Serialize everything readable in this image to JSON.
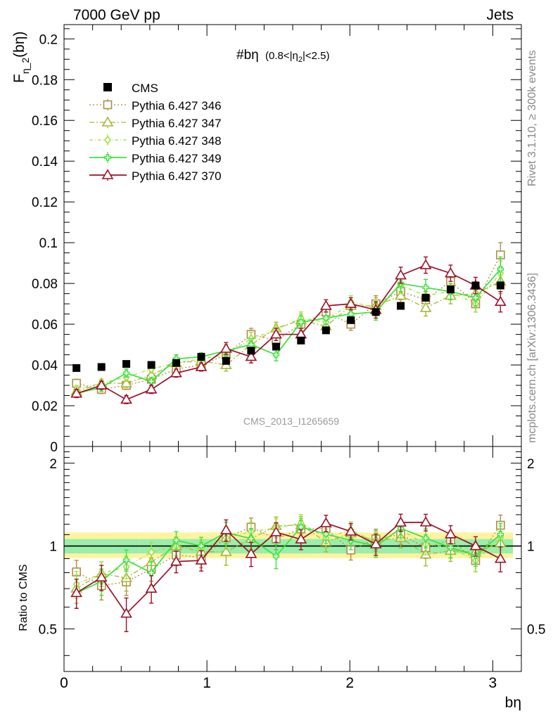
{
  "header": {
    "energy": "7000 GeV pp",
    "category": "Jets"
  },
  "side_labels": {
    "rivet": "Rivet 3.1.10, ≥ 300k events",
    "mcplots": "mcplots.cern.ch [arXiv:1306.3436]"
  },
  "watermark": "CMS_2013_I1265659",
  "colors": {
    "CMS": "#000000",
    "Pythia 6.427 346": "#b08d48",
    "Pythia 6.427 347": "#a9b536",
    "Pythia 6.427 348": "#a0e040",
    "Pythia 6.427 349": "#3ae23a",
    "Pythia 6.427 370": "#9b1028",
    "band_outer": "#fff3a0",
    "band_inner": "#99eeaa"
  },
  "chart_data": {
    "type": "scatter",
    "title_main": "#bη",
    "title_sub": "(0.8<|η",
    "title_sub_index": "2",
    "title_sub_end": "|<2.5)",
    "ylabel_main": "F",
    "ylabel_sub": "η_2",
    "ylabel_end": "(bη)",
    "xlabel": "bη",
    "ratio_ylabel": "Ratio to CMS",
    "xlim": [
      0,
      3.2
    ],
    "ylim_main": [
      0,
      0.207
    ],
    "ylim_ratio": [
      0.35,
      2.3
    ],
    "x_ticks": [
      "0",
      "1",
      "2",
      "3"
    ],
    "y_ticks_main": [
      "0",
      "0.02",
      "0.04",
      "0.06",
      "0.08",
      "0.1",
      "0.12",
      "0.14",
      "0.16",
      "0.18",
      "0.2"
    ],
    "y_ticks_ratio": [
      "0.5",
      "1",
      "2"
    ],
    "x": [
      0.087,
      0.262,
      0.436,
      0.611,
      0.785,
      0.96,
      1.134,
      1.309,
      1.484,
      1.658,
      1.833,
      2.007,
      2.182,
      2.356,
      2.531,
      2.705,
      2.88,
      3.054
    ],
    "cms": {
      "name": "CMS",
      "values": [
        0.0385,
        0.039,
        0.0405,
        0.04,
        0.041,
        0.044,
        0.042,
        0.047,
        0.049,
        0.052,
        0.057,
        0.062,
        0.066,
        0.069,
        0.073,
        0.077,
        0.079,
        0.079
      ],
      "rel_stat_err": 0.04,
      "rel_sys_err": 0.12
    },
    "series": [
      {
        "name": "Pythia 6.427 346",
        "marker": "square",
        "dash": "2,3",
        "values": [
          0.031,
          0.028,
          0.03,
          0.033,
          0.038,
          0.04,
          0.045,
          0.055,
          0.052,
          0.06,
          0.066,
          0.06,
          0.07,
          0.076,
          0.072,
          0.081,
          0.07,
          0.094
        ],
        "errors": [
          0.002,
          0.002,
          0.002,
          0.002,
          0.002,
          0.002,
          0.003,
          0.003,
          0.003,
          0.003,
          0.003,
          0.003,
          0.004,
          0.004,
          0.004,
          0.004,
          0.004,
          0.006
        ]
      },
      {
        "name": "Pythia 6.427 347",
        "marker": "triangle",
        "dash": "7,3,2,3",
        "values": [
          0.027,
          0.031,
          0.031,
          0.035,
          0.041,
          0.042,
          0.04,
          0.05,
          0.058,
          0.062,
          0.059,
          0.069,
          0.069,
          0.074,
          0.068,
          0.074,
          0.075,
          0.081
        ],
        "errors": [
          0.002,
          0.002,
          0.002,
          0.002,
          0.002,
          0.002,
          0.003,
          0.003,
          0.003,
          0.003,
          0.003,
          0.003,
          0.004,
          0.004,
          0.004,
          0.004,
          0.004,
          0.006
        ]
      },
      {
        "name": "Pythia 6.427 348",
        "marker": "diamond",
        "dash": "5,3,1,3",
        "values": [
          0.028,
          0.031,
          0.034,
          0.038,
          0.041,
          0.043,
          0.045,
          0.053,
          0.057,
          0.063,
          0.061,
          0.071,
          0.068,
          0.079,
          0.074,
          0.076,
          0.07,
          0.085
        ],
        "errors": [
          0.002,
          0.002,
          0.002,
          0.002,
          0.002,
          0.002,
          0.003,
          0.003,
          0.003,
          0.003,
          0.003,
          0.003,
          0.004,
          0.004,
          0.004,
          0.004,
          0.004,
          0.006
        ]
      },
      {
        "name": "Pythia 6.427 349",
        "marker": "cross",
        "dash": "",
        "values": [
          0.026,
          0.029,
          0.036,
          0.032,
          0.043,
          0.044,
          0.047,
          0.05,
          0.045,
          0.061,
          0.063,
          0.065,
          0.066,
          0.08,
          0.078,
          0.076,
          0.073,
          0.087
        ],
        "errors": [
          0.002,
          0.002,
          0.002,
          0.002,
          0.002,
          0.002,
          0.003,
          0.003,
          0.003,
          0.003,
          0.003,
          0.003,
          0.004,
          0.004,
          0.004,
          0.004,
          0.004,
          0.006
        ]
      },
      {
        "name": "Pythia 6.427 370",
        "marker": "triangle",
        "dash": "",
        "values": [
          0.026,
          0.03,
          0.023,
          0.028,
          0.036,
          0.039,
          0.048,
          0.044,
          0.055,
          0.055,
          0.069,
          0.07,
          0.067,
          0.084,
          0.089,
          0.085,
          0.079,
          0.071
        ],
        "errors": [
          0.002,
          0.002,
          0.002,
          0.002,
          0.002,
          0.002,
          0.003,
          0.003,
          0.003,
          0.003,
          0.003,
          0.003,
          0.004,
          0.004,
          0.004,
          0.004,
          0.004,
          0.005
        ]
      }
    ]
  }
}
